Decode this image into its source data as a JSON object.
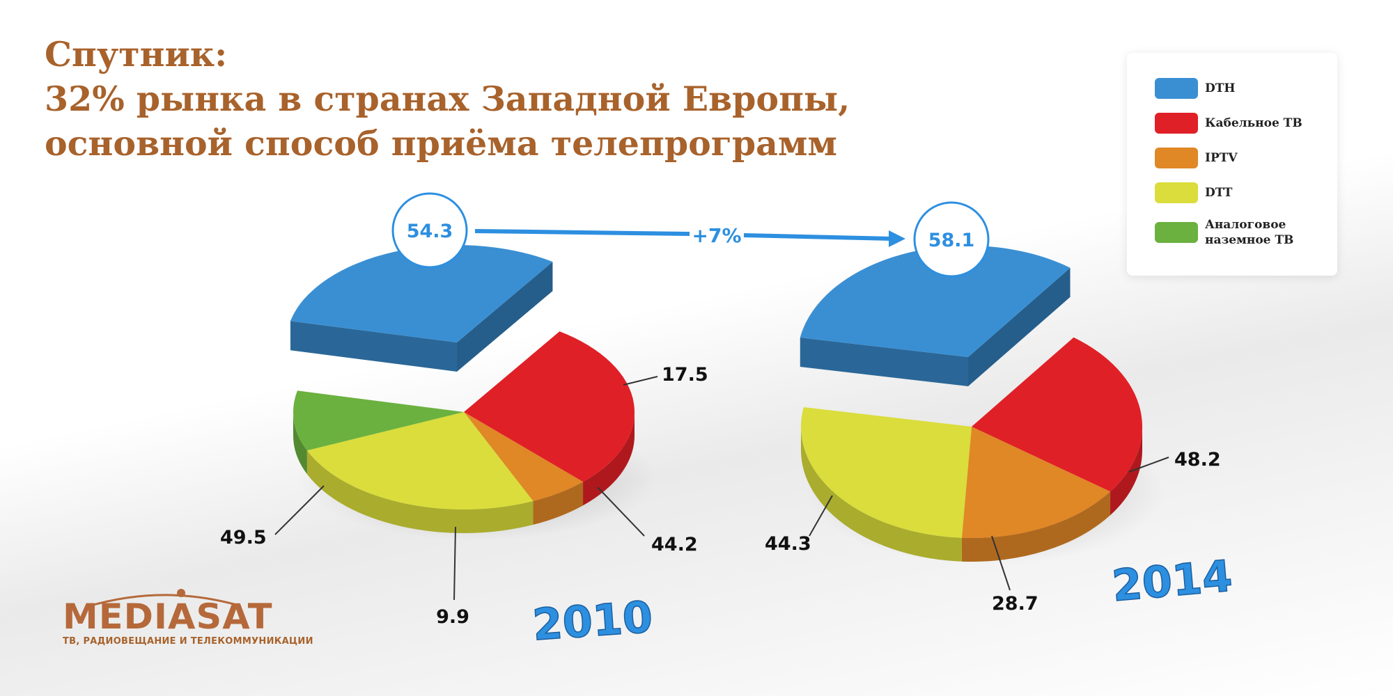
{
  "title": {
    "line1": "Спутник:",
    "line2": "32% рынка в странах Западной Европы,",
    "line3": "основной способ приёма телепрограмм"
  },
  "legend": [
    {
      "label": "DTH",
      "color": "#3a8fd3"
    },
    {
      "label": "Кабельное ТВ",
      "color": "#e02027"
    },
    {
      "label": "IPTV",
      "color": "#e08726"
    },
    {
      "label": "DTT",
      "color": "#dadd3b"
    },
    {
      "label": "Аналоговое наземное ТВ",
      "color": "#6bb13f"
    }
  ],
  "growth": {
    "label": "+7%",
    "arrow_color": "#2d8fe0"
  },
  "logo": {
    "name": "MEDIASAT",
    "tagline": "ТВ, РАДИОВЕЩАНИЕ И ТЕЛЕКОММУНИКАЦИИ"
  },
  "chart_data": [
    {
      "type": "pie",
      "year": "2010",
      "series": [
        {
          "name": "DTH",
          "value": 54.3
        },
        {
          "name": "Кабельное ТВ",
          "value": 49.5
        },
        {
          "name": "IPTV",
          "value": 9.9
        },
        {
          "name": "DTT",
          "value": 44.2
        },
        {
          "name": "Аналоговое наземное ТВ",
          "value": 17.5
        }
      ]
    },
    {
      "type": "pie",
      "year": "2014",
      "series": [
        {
          "name": "DTH",
          "value": 58.1
        },
        {
          "name": "Кабельное ТВ",
          "value": 44.3
        },
        {
          "name": "IPTV",
          "value": 28.7
        },
        {
          "name": "DTT",
          "value": 48.2
        },
        {
          "name": "Аналоговое наземное ТВ",
          "value": 0
        }
      ]
    }
  ]
}
